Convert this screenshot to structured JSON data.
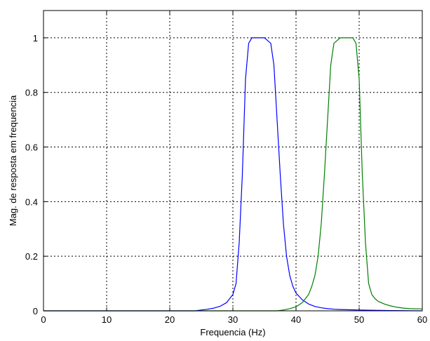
{
  "chart_data": {
    "type": "line",
    "title": "",
    "xlabel": "Frequencia (Hz)",
    "ylabel": "Mag. de resposta em frequencia",
    "xlim": [
      0,
      60
    ],
    "ylim": [
      0,
      1.1
    ],
    "xticks": [
      0,
      10,
      20,
      30,
      40,
      50,
      60
    ],
    "yticks": [
      0,
      0.2,
      0.4,
      0.6,
      0.8,
      1
    ],
    "ytick_labels": [
      "0",
      "0.2",
      "0.4",
      "0.6",
      "0.8",
      "1"
    ],
    "grid": true,
    "grid_style": "dotted",
    "legend": false,
    "series": [
      {
        "color": "#0000ff",
        "x": [
          0,
          24,
          25,
          26,
          27,
          28,
          29,
          30,
          30.5,
          31,
          31.5,
          32,
          32.5,
          33,
          33.5,
          34,
          35,
          36,
          36.5,
          37,
          37.5,
          38,
          38.5,
          39,
          39.5,
          40,
          41,
          42,
          43,
          44,
          45,
          46,
          47,
          48,
          50,
          55,
          60
        ],
        "y": [
          0,
          0,
          0.003,
          0.006,
          0.01,
          0.017,
          0.03,
          0.06,
          0.1,
          0.25,
          0.5,
          0.85,
          0.98,
          1,
          1,
          1,
          1,
          0.98,
          0.9,
          0.7,
          0.5,
          0.32,
          0.2,
          0.13,
          0.09,
          0.065,
          0.04,
          0.025,
          0.016,
          0.011,
          0.008,
          0.006,
          0.005,
          0.004,
          0.003,
          0.001,
          0.0
        ]
      },
      {
        "color": "#008000",
        "x": [
          0,
          37,
          38,
          39,
          40,
          41,
          42,
          42.5,
          43,
          43.5,
          44,
          44.5,
          45,
          45.5,
          46,
          47,
          48,
          49,
          49.5,
          50,
          50.5,
          51,
          51.5,
          52,
          52.5,
          53,
          54,
          55,
          56,
          57,
          58,
          60
        ],
        "y": [
          0,
          0,
          0.003,
          0.008,
          0.015,
          0.03,
          0.06,
          0.09,
          0.13,
          0.2,
          0.32,
          0.5,
          0.7,
          0.9,
          0.98,
          1,
          1,
          1,
          0.98,
          0.85,
          0.5,
          0.25,
          0.1,
          0.06,
          0.045,
          0.035,
          0.025,
          0.018,
          0.013,
          0.01,
          0.008,
          0.007
        ]
      }
    ]
  }
}
